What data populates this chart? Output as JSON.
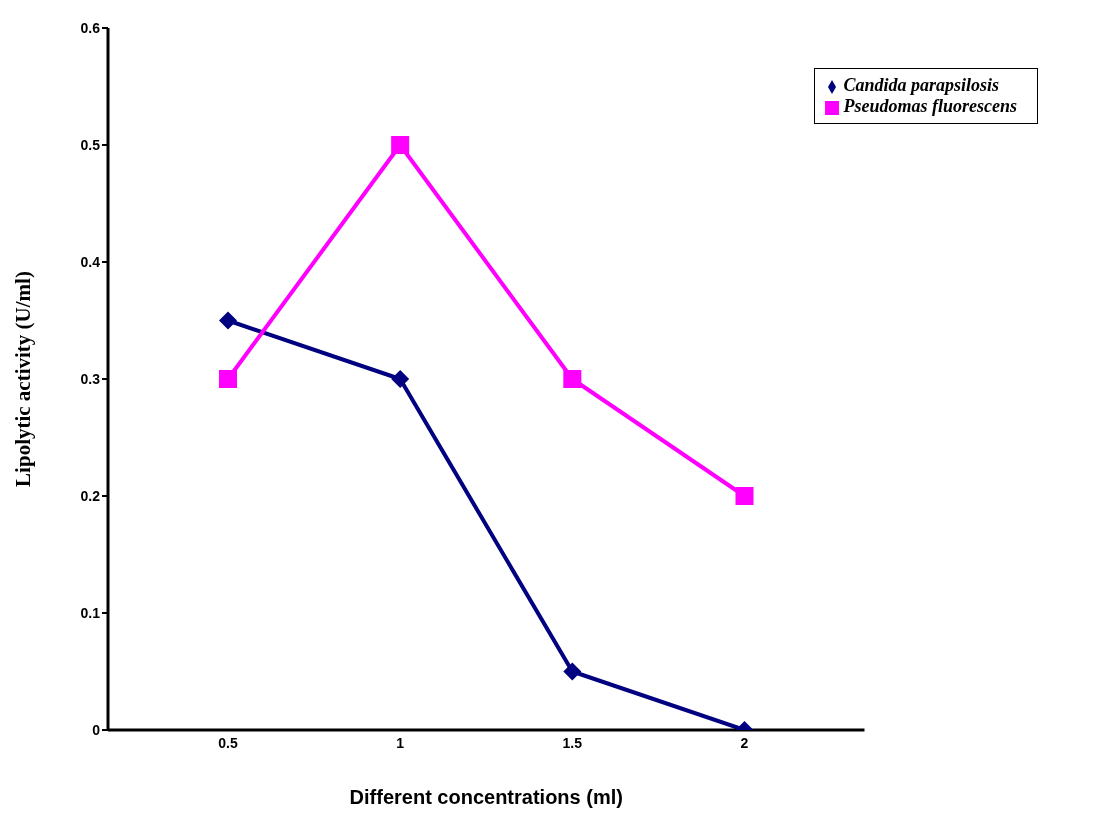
{
  "chart_data": {
    "type": "line",
    "xlabel": "Different concentrations (ml)",
    "ylabel": "Lipolytic activity (U/ml)",
    "categories": [
      "0.5",
      "1",
      "1.5",
      "2"
    ],
    "series": [
      {
        "name": "Candida  parapsilosis",
        "color": "#000080",
        "values": [
          0.35,
          0.3,
          0.05,
          0
        ],
        "marker": "diamond"
      },
      {
        "name": "Pseudomas fluorescens",
        "color": "#ff00ff",
        "values": [
          0.3,
          0.5,
          0.3,
          0.2
        ],
        "marker": "square"
      }
    ],
    "ylim": [
      0,
      0.6
    ],
    "yticks": [
      0,
      0.1,
      0.2,
      0.3,
      0.4,
      0.5,
      0.6
    ],
    "grid": false,
    "legend": "top right",
    "line_style": "solid"
  }
}
